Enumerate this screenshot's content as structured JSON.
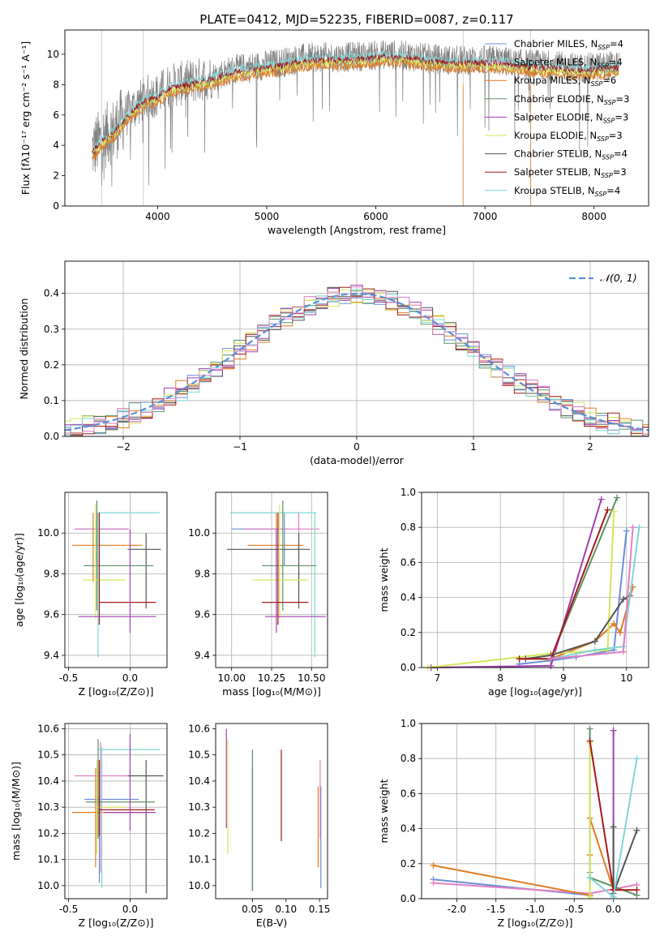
{
  "figure": {
    "title": "PLATE=0412, MJD=52235, FIBERID=0087, z=0.117"
  },
  "colors": {
    "series": [
      "#6c8ed6",
      "#e0e0e0",
      "#e07b24",
      "#5e9166",
      "#a23fb2",
      "#d6e65a",
      "#555555",
      "#a31a1a",
      "#7fd6d6"
    ],
    "pink": "#e27fc4",
    "obs": "#808080"
  },
  "chart_data": [
    {
      "id": "spectrum",
      "type": "line",
      "xlabel": "wavelength [Angstrom, rest frame]",
      "ylabel": "Flux [fλ10⁻¹⁷ erg cm⁻² s⁻¹ A⁻¹]",
      "xlim": [
        3150,
        8500
      ],
      "ylim": [
        0,
        11.6
      ],
      "xticks": [
        4000,
        5000,
        6000,
        7000,
        8000
      ],
      "yticks": [
        0,
        2,
        4,
        6,
        8,
        10
      ],
      "grid": false,
      "legend_position": "right",
      "legend": [
        {
          "label": "Chabrier MILES, N_SSP=4",
          "base": "Chabrier MILES, N",
          "sub": "SSP",
          "tail": "=4"
        },
        {
          "label": "Salpeter MILES, N_SSP=4",
          "base": "Salpeter MILES, N",
          "sub": "SSP",
          "tail": "=4"
        },
        {
          "label": "Kroupa MILES, N_SSP=6",
          "base": "Kroupa MILES, N",
          "sub": "SSP",
          "tail": "=6"
        },
        {
          "label": "Chabrier ELODIE, N_SSP=3",
          "base": "Chabrier ELODIE, N",
          "sub": "SSP",
          "tail": "=3"
        },
        {
          "label": "Salpeter ELODIE, N_SSP=3",
          "base": "Salpeter ELODIE, N",
          "sub": "SSP",
          "tail": "=3"
        },
        {
          "label": "Kroupa ELODIE, N_SSP=3",
          "base": "Kroupa ELODIE, N",
          "sub": "SSP",
          "tail": "=3"
        },
        {
          "label": "Chabrier STELIB, N_SSP=4",
          "base": "Chabrier STELIB, N",
          "sub": "SSP",
          "tail": "=4"
        },
        {
          "label": "Salpeter STELIB, N_SSP=3",
          "base": "Salpeter STELIB, N",
          "sub": "SSP",
          "tail": "=3"
        },
        {
          "label": "Kroupa STELIB, N_SSP=4",
          "base": "Kroupa STELIB, N",
          "sub": "SSP",
          "tail": "=4"
        }
      ],
      "continuum": [
        [
          3400,
          3.7
        ],
        [
          3500,
          4.5
        ],
        [
          3600,
          5.0
        ],
        [
          3700,
          5.9
        ],
        [
          3800,
          6.6
        ],
        [
          3900,
          7.2
        ],
        [
          4000,
          7.3
        ],
        [
          4100,
          7.9
        ],
        [
          4300,
          8.2
        ],
        [
          4500,
          8.5
        ],
        [
          4700,
          9.0
        ],
        [
          4900,
          9.2
        ],
        [
          5100,
          9.4
        ],
        [
          5300,
          9.7
        ],
        [
          5500,
          9.8
        ],
        [
          5700,
          9.8
        ],
        [
          5900,
          9.9
        ],
        [
          6100,
          10.0
        ],
        [
          6300,
          9.9
        ],
        [
          6500,
          9.7
        ],
        [
          6700,
          9.6
        ],
        [
          6900,
          9.6
        ],
        [
          7100,
          9.6
        ],
        [
          7300,
          9.4
        ],
        [
          7500,
          9.3
        ],
        [
          7700,
          9.2
        ],
        [
          7900,
          9.1
        ],
        [
          8100,
          9.2
        ],
        [
          8200,
          9.3
        ]
      ]
    },
    {
      "id": "residuals",
      "type": "histogram",
      "xlabel": "(data-model)/error",
      "ylabel": "Normed distribution",
      "xlim": [
        -2.5,
        2.5
      ],
      "ylim": [
        0,
        0.49
      ],
      "xticks": [
        -2,
        -1,
        0,
        1,
        2
      ],
      "yticks": [
        0.0,
        0.1,
        0.2,
        0.3,
        0.4
      ],
      "grid": true,
      "legend_position": "top-right",
      "legend_label": "𝒩(0, 1)",
      "gaussian": {
        "mean": 0,
        "sigma": 1
      }
    },
    {
      "id": "age-vs-Z",
      "type": "scatter",
      "xlabel": "Z [log₁₀(Z/Z⊙)]",
      "ylabel": "age  [log₁₀(age/yr)]",
      "xlim": [
        -0.53,
        0.3
      ],
      "ylim": [
        9.34,
        10.2
      ],
      "xticks": [
        -0.5,
        0.0
      ],
      "yticks": [
        9.4,
        9.6,
        9.8,
        10.0
      ],
      "grid": true,
      "points": [
        {
          "c": 0,
          "x": -0.27,
          "xe": [
            -0.45,
            -0.02
          ],
          "y": 10.02,
          "ye": [
            9.84,
            10.1
          ]
        },
        {
          "c": 9,
          "x": -0.26,
          "xe": [
            -0.45,
            -0.01
          ],
          "y": 10.02,
          "ye": [
            9.74,
            10.1
          ]
        },
        {
          "c": 2,
          "x": -0.3,
          "xe": [
            -0.47,
            0.1
          ],
          "y": 9.94,
          "ye": [
            9.76,
            10.1
          ]
        },
        {
          "c": 8,
          "x": -0.26,
          "xe": [
            -0.26,
            0.24
          ],
          "y": 10.1,
          "ye": [
            9.39,
            10.1
          ]
        },
        {
          "c": 6,
          "x": 0.13,
          "xe": [
            -0.02,
            0.25
          ],
          "y": 9.92,
          "ye": [
            9.63,
            10.0
          ]
        },
        {
          "c": 3,
          "x": -0.27,
          "xe": [
            -0.38,
            0.19
          ],
          "y": 9.84,
          "ye": [
            9.62,
            10.16
          ]
        },
        {
          "c": 5,
          "x": -0.28,
          "xe": [
            -0.38,
            -0.04
          ],
          "y": 9.77,
          "ye": [
            9.58,
            10.14
          ]
        },
        {
          "c": 7,
          "x": -0.25,
          "xe": [
            -0.25,
            0.21
          ],
          "y": 9.66,
          "ye": [
            9.55,
            10.1
          ]
        },
        {
          "c": 4,
          "x": 0.0,
          "xe": [
            -0.42,
            0.21
          ],
          "y": 9.59,
          "ye": [
            9.51,
            10.02
          ]
        }
      ]
    },
    {
      "id": "age-vs-mass",
      "type": "scatter",
      "xlabel": "mass [log₁₀(M/M⊙)]",
      "ylabel": "",
      "xlim": [
        9.9,
        10.6
      ],
      "ylim": [
        9.34,
        10.2
      ],
      "xticks": [
        10.0,
        10.25,
        10.5
      ],
      "yticks": [
        9.4,
        9.6,
        9.8,
        10.0
      ],
      "grid": true,
      "points": [
        {
          "c": 0,
          "x": 10.33,
          "xe": [
            10.0,
            10.36
          ],
          "y": 10.02,
          "ye": [
            9.84,
            10.1
          ]
        },
        {
          "c": 9,
          "x": 10.42,
          "xe": [
            10.08,
            10.55
          ],
          "y": 10.02,
          "ye": [
            9.74,
            10.1
          ]
        },
        {
          "c": 2,
          "x": 10.28,
          "xe": [
            10.1,
            10.45
          ],
          "y": 9.94,
          "ye": [
            9.76,
            10.1
          ]
        },
        {
          "c": 8,
          "x": 10.52,
          "xe": [
            9.99,
            10.53
          ],
          "y": 10.1,
          "ye": [
            9.39,
            10.1
          ]
        },
        {
          "c": 6,
          "x": 10.42,
          "xe": [
            9.97,
            10.49
          ],
          "y": 9.92,
          "ye": [
            9.63,
            10.0
          ]
        },
        {
          "c": 3,
          "x": 10.32,
          "xe": [
            10.19,
            10.53
          ],
          "y": 9.84,
          "ye": [
            9.62,
            10.16
          ]
        },
        {
          "c": 5,
          "x": 10.3,
          "xe": [
            10.13,
            10.48
          ],
          "y": 9.77,
          "ye": [
            9.58,
            10.14
          ]
        },
        {
          "c": 7,
          "x": 10.29,
          "xe": [
            10.19,
            10.48
          ],
          "y": 9.66,
          "ye": [
            9.55,
            10.1
          ]
        },
        {
          "c": 4,
          "x": 10.28,
          "xe": [
            10.21,
            10.59
          ],
          "y": 9.59,
          "ye": [
            9.51,
            10.02
          ]
        }
      ]
    },
    {
      "id": "massweight-vs-age",
      "type": "line",
      "xlabel": "age  [log₁₀(age/yr)]",
      "ylabel": "mass weight",
      "xlim": [
        6.75,
        10.35
      ],
      "ylim": [
        0,
        1.0
      ],
      "xticks": [
        7,
        8,
        9,
        10
      ],
      "yticks": [
        0.0,
        0.2,
        0.4,
        0.6,
        0.8,
        1.0
      ],
      "grid": true,
      "series": [
        {
          "c": 0,
          "x": [
            8.3,
            8.8,
            9.2,
            9.8,
            10.0
          ],
          "y": [
            0.02,
            0.04,
            0.06,
            0.1,
            0.78
          ]
        },
        {
          "c": 2,
          "x": [
            8.3,
            8.8,
            9.5,
            9.8,
            9.9,
            10.1
          ],
          "y": [
            0.05,
            0.05,
            0.15,
            0.25,
            0.2,
            0.46
          ]
        },
        {
          "c": 3,
          "x": [
            8.8,
            9.85
          ],
          "y": [
            0.05,
            0.97
          ]
        },
        {
          "c": 4,
          "x": [
            6.9,
            8.8,
            9.6
          ],
          "y": [
            0.0,
            0.01,
            0.96
          ]
        },
        {
          "c": 5,
          "x": [
            6.85,
            8.8,
            9.7,
            9.8
          ],
          "y": [
            0.0,
            0.08,
            0.1,
            0.89
          ]
        },
        {
          "c": 6,
          "x": [
            8.4,
            8.8,
            9.5,
            9.95,
            10.05
          ],
          "y": [
            0.05,
            0.07,
            0.15,
            0.39,
            0.41
          ]
        },
        {
          "c": 7,
          "x": [
            8.3,
            8.8,
            9.7
          ],
          "y": [
            0.05,
            0.05,
            0.9
          ]
        },
        {
          "c": 8,
          "x": [
            8.8,
            9.5,
            9.95,
            10.2
          ],
          "y": [
            0.05,
            0.1,
            0.12,
            0.8
          ]
        },
        {
          "c": 9,
          "x": [
            8.8,
            9.95,
            10.1
          ],
          "y": [
            0.05,
            0.09,
            0.8
          ]
        }
      ]
    },
    {
      "id": "mass-vs-Z",
      "type": "scatter",
      "xlabel": "Z [log₁₀(Z/Z⊙)]",
      "ylabel": "mass [log₁₀(M/M⊙)]",
      "xlim": [
        -0.53,
        0.3
      ],
      "ylim": [
        9.95,
        10.62
      ],
      "xticks": [
        -0.5,
        0.0
      ],
      "yticks": [
        10.0,
        10.1,
        10.2,
        10.3,
        10.4,
        10.5,
        10.6
      ],
      "grid": true,
      "points": [
        {
          "c": 0,
          "x": -0.25,
          "xe": [
            -0.37,
            0.07
          ],
          "y": 10.33,
          "ye": [
            10.01,
            10.36
          ]
        },
        {
          "c": 9,
          "x": -0.24,
          "xe": [
            -0.45,
            0.02
          ],
          "y": 10.42,
          "ye": [
            10.05,
            10.55
          ]
        },
        {
          "c": 2,
          "x": -0.28,
          "xe": [
            -0.47,
            0.1
          ],
          "y": 10.28,
          "ye": [
            10.07,
            10.45
          ]
        },
        {
          "c": 8,
          "x": -0.23,
          "xe": [
            -0.26,
            0.24
          ],
          "y": 10.52,
          "ye": [
            9.99,
            10.53
          ]
        },
        {
          "c": 6,
          "x": 0.13,
          "xe": [
            -0.02,
            0.27
          ],
          "y": 10.42,
          "ye": [
            9.97,
            10.48
          ]
        },
        {
          "c": 3,
          "x": -0.26,
          "xe": [
            -0.36,
            0.2
          ],
          "y": 10.32,
          "ye": [
            10.18,
            10.56
          ]
        },
        {
          "c": 5,
          "x": -0.27,
          "xe": [
            -0.28,
            -0.03
          ],
          "y": 10.3,
          "ye": [
            10.12,
            10.48
          ]
        },
        {
          "c": 7,
          "x": -0.25,
          "xe": [
            -0.25,
            0.2
          ],
          "y": 10.29,
          "ye": [
            10.19,
            10.48
          ]
        },
        {
          "c": 4,
          "x": 0.0,
          "xe": [
            -0.21,
            0.21
          ],
          "y": 10.28,
          "ye": [
            10.21,
            10.58
          ]
        }
      ]
    },
    {
      "id": "mass-vs-ebv",
      "type": "scatter",
      "xlabel": "E(B-V)",
      "ylabel": "",
      "xlim": [
        -0.005,
        0.162
      ],
      "ylim": [
        9.95,
        10.62
      ],
      "xticks": [
        0.05,
        0.1,
        0.15
      ],
      "yticks": [
        10.0,
        10.1,
        10.2,
        10.3,
        10.4,
        10.5,
        10.6
      ],
      "grid": false,
      "points": [
        {
          "c": 0,
          "x": 0.152,
          "y": 10.2,
          "ye": [
            9.99,
            10.38
          ]
        },
        {
          "c": 9,
          "x": 0.151,
          "y": 10.35,
          "ye": [
            10.18,
            10.48
          ]
        },
        {
          "c": 2,
          "x": 0.148,
          "y": 10.22,
          "ye": [
            10.07,
            10.38
          ]
        },
        {
          "c": 8,
          "x": 0.05,
          "y": 10.25,
          "ye": [
            9.98,
            10.52
          ]
        },
        {
          "c": 6,
          "x": 0.05,
          "y": 10.2,
          "ye": [
            9.98,
            10.45
          ]
        },
        {
          "c": 7,
          "x": 0.093,
          "y": 10.33,
          "ye": [
            10.17,
            10.52
          ]
        },
        {
          "c": 4,
          "x": 0.011,
          "y": 10.4,
          "ye": [
            10.22,
            10.6
          ]
        },
        {
          "c": 5,
          "x": 0.013,
          "y": 10.35,
          "ye": [
            10.12,
            10.56
          ]
        },
        {
          "c": 3,
          "x": 0.05,
          "y": 10.3,
          "ye": [
            9.98,
            10.52
          ]
        }
      ]
    },
    {
      "id": "massweight-vs-Z",
      "type": "line",
      "xlabel": "Z [log₁₀(Z/Z⊙)]",
      "ylabel": "mass weight",
      "xlim": [
        -2.45,
        0.45
      ],
      "ylim": [
        0,
        1.0
      ],
      "xticks": [
        -2.0,
        -1.5,
        -1.0,
        -0.5,
        0.0
      ],
      "yticks": [
        0.0,
        0.2,
        0.4,
        0.6,
        0.8,
        1.0
      ],
      "grid": true,
      "series": [
        {
          "c": 0,
          "x": [
            -2.3,
            -0.3,
            -0.3
          ],
          "y": [
            0.11,
            0.02,
            0.15
          ]
        },
        {
          "c": 9,
          "x": [
            -2.3,
            -0.3,
            0.3
          ],
          "y": [
            0.09,
            0.03,
            0.08
          ]
        },
        {
          "c": 2,
          "x": [
            -2.3,
            -0.3,
            -0.3,
            -0.3,
            0.0
          ],
          "y": [
            0.19,
            0.02,
            0.25,
            0.46,
            0.05
          ]
        },
        {
          "c": 3,
          "x": [
            -0.3,
            -0.3,
            0.3
          ],
          "y": [
            0.97,
            0.12,
            0.02
          ]
        },
        {
          "c": 4,
          "x": [
            0.0,
            0.0
          ],
          "y": [
            0.96,
            0.01
          ]
        },
        {
          "c": 5,
          "x": [
            -0.3,
            -0.3
          ],
          "y": [
            0.89,
            0.01
          ]
        },
        {
          "c": 6,
          "x": [
            0.0,
            0.0,
            0.3
          ],
          "y": [
            0.41,
            0.03,
            0.39
          ]
        },
        {
          "c": 7,
          "x": [
            -0.3,
            0.0,
            0.3
          ],
          "y": [
            0.9,
            0.05,
            0.05
          ]
        },
        {
          "c": 8,
          "x": [
            -0.3,
            0.0,
            0.3
          ],
          "y": [
            0.12,
            0.01,
            0.8
          ]
        }
      ]
    }
  ]
}
